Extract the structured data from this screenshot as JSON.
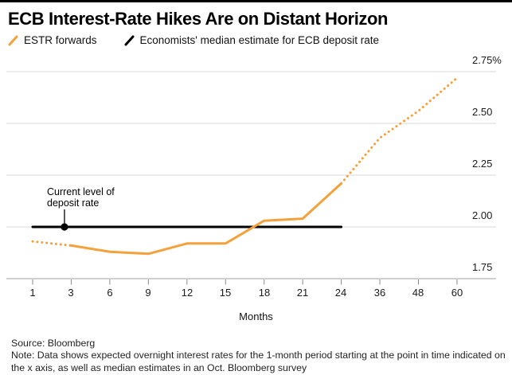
{
  "header": {
    "title": "ECB Interest-Rate Hikes Are on Distant Horizon"
  },
  "legend": {
    "items": [
      {
        "label": "ESTR forwards",
        "color": "#F5A13B",
        "marker": "slash-icon"
      },
      {
        "label": "Economists' median estimate for ECB deposit rate",
        "color": "#000000",
        "marker": "slash-icon"
      }
    ]
  },
  "chart_data": {
    "type": "line",
    "title": "ECB Interest-Rate Hikes Are on Distant Horizon",
    "xlabel": "Months",
    "ylabel": "",
    "x_axis_type": "ordinal-equal-spacing",
    "x_tick_labels": [
      "1",
      "3",
      "6",
      "9",
      "12",
      "15",
      "18",
      "21",
      "24",
      "36",
      "48",
      "60"
    ],
    "y_ticks": [
      1.75,
      2.0,
      2.25,
      2.5,
      2.75
    ],
    "y_tick_labels": [
      "1.75",
      "2.00",
      "2.25",
      "2.50",
      "2.75%"
    ],
    "ylim": [
      1.75,
      2.81
    ],
    "grid": "horizontal",
    "legend_position": "top-left",
    "colors": {
      "grid": "#d9d9d9",
      "axis": "#b3b3b3",
      "tick": "#8a8a8a"
    },
    "series": [
      {
        "name": "ESTR forwards",
        "color": "#F5A13B",
        "x": [
          1,
          3,
          6,
          9,
          12,
          15,
          18,
          21,
          24,
          36,
          48,
          60
        ],
        "values": [
          1.93,
          1.91,
          1.88,
          1.87,
          1.92,
          1.92,
          2.03,
          2.04,
          2.21,
          2.43,
          2.56,
          2.72
        ],
        "segments": [
          {
            "from_month": 1,
            "to_month": 3,
            "style": "dotted"
          },
          {
            "from_month": 3,
            "to_month": 24,
            "style": "solid"
          },
          {
            "from_month": 24,
            "to_month": 60,
            "style": "dotted"
          }
        ]
      },
      {
        "name": "Economists' median estimate for ECB deposit rate",
        "color": "#000000",
        "x": [
          1,
          24
        ],
        "values": [
          2.0,
          2.0
        ],
        "style": "solid"
      }
    ],
    "annotation": {
      "line1": "Current level of",
      "line2": "deposit rate",
      "marker_value": 2.0,
      "marker_x_fraction": 0.075
    }
  },
  "footer": {
    "source": "Source: Bloomberg",
    "note": "Note: Data shows expected overnight interest rates for the 1-month period starting at the point in time indicated on the x axis, as well as median estimates in an Oct. Bloomberg survey"
  }
}
